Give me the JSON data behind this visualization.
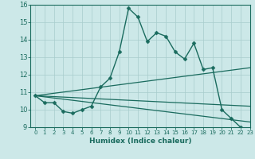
{
  "title": "",
  "xlabel": "Humidex (Indice chaleur)",
  "ylabel": "",
  "background_color": "#cce8e8",
  "line_color": "#1a6b5e",
  "xlim": [
    -0.5,
    23
  ],
  "ylim": [
    9,
    16
  ],
  "yticks": [
    9,
    10,
    11,
    12,
    13,
    14,
    15,
    16
  ],
  "xticks": [
    0,
    1,
    2,
    3,
    4,
    5,
    6,
    7,
    8,
    9,
    10,
    11,
    12,
    13,
    14,
    15,
    16,
    17,
    18,
    19,
    20,
    21,
    22,
    23
  ],
  "series": [
    {
      "x": [
        0,
        1,
        2,
        3,
        4,
        5,
        6,
        7,
        8,
        9,
        10,
        11,
        12,
        13,
        14,
        15,
        16,
        17,
        18,
        19,
        20,
        21,
        22,
        23
      ],
      "y": [
        10.8,
        10.4,
        10.4,
        9.9,
        9.8,
        10.0,
        10.2,
        11.3,
        11.8,
        13.3,
        15.8,
        15.3,
        13.9,
        14.4,
        14.2,
        13.3,
        12.9,
        13.8,
        12.3,
        12.4,
        10.0,
        9.5,
        9.0,
        8.8
      ],
      "marker": "D",
      "markersize": 2.5,
      "linewidth": 1.0,
      "straight": false
    },
    {
      "x": [
        0,
        23
      ],
      "y": [
        10.8,
        12.4
      ],
      "marker": null,
      "markersize": 0,
      "linewidth": 0.9,
      "straight": true
    },
    {
      "x": [
        0,
        23
      ],
      "y": [
        10.8,
        10.2
      ],
      "marker": null,
      "markersize": 0,
      "linewidth": 0.9,
      "straight": true
    },
    {
      "x": [
        0,
        23
      ],
      "y": [
        10.8,
        9.3
      ],
      "marker": null,
      "markersize": 0,
      "linewidth": 0.9,
      "straight": true
    }
  ]
}
